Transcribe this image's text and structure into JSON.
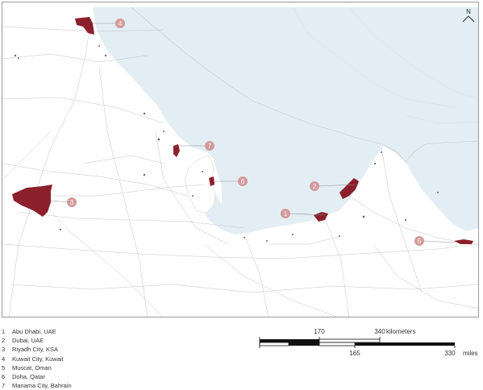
{
  "north_arrow": {
    "label": "N"
  },
  "cities": [
    {
      "number": "1",
      "name": "Abu Dhabi, UAE"
    },
    {
      "number": "2",
      "name": "Dubai, UAE"
    },
    {
      "number": "3",
      "name": "Riyadh City, KSA"
    },
    {
      "number": "4",
      "name": "Kuwait City, Kuwait"
    },
    {
      "number": "5",
      "name": "Muscat, Oman"
    },
    {
      "number": "6",
      "name": "Doha, Qatar"
    },
    {
      "number": "7",
      "name": "Manama City, Bahrain"
    }
  ],
  "scale_bar": {
    "km_ticks": [
      "170",
      "340"
    ],
    "km_unit": "kilometers",
    "mile_ticks": [
      "165",
      "330"
    ],
    "mile_unit": "miles"
  },
  "colors": {
    "sea": "#e3eef4",
    "urban_area": "#8b1f2a",
    "marker": "#d49a9a",
    "roads": "#bdbdbd"
  }
}
